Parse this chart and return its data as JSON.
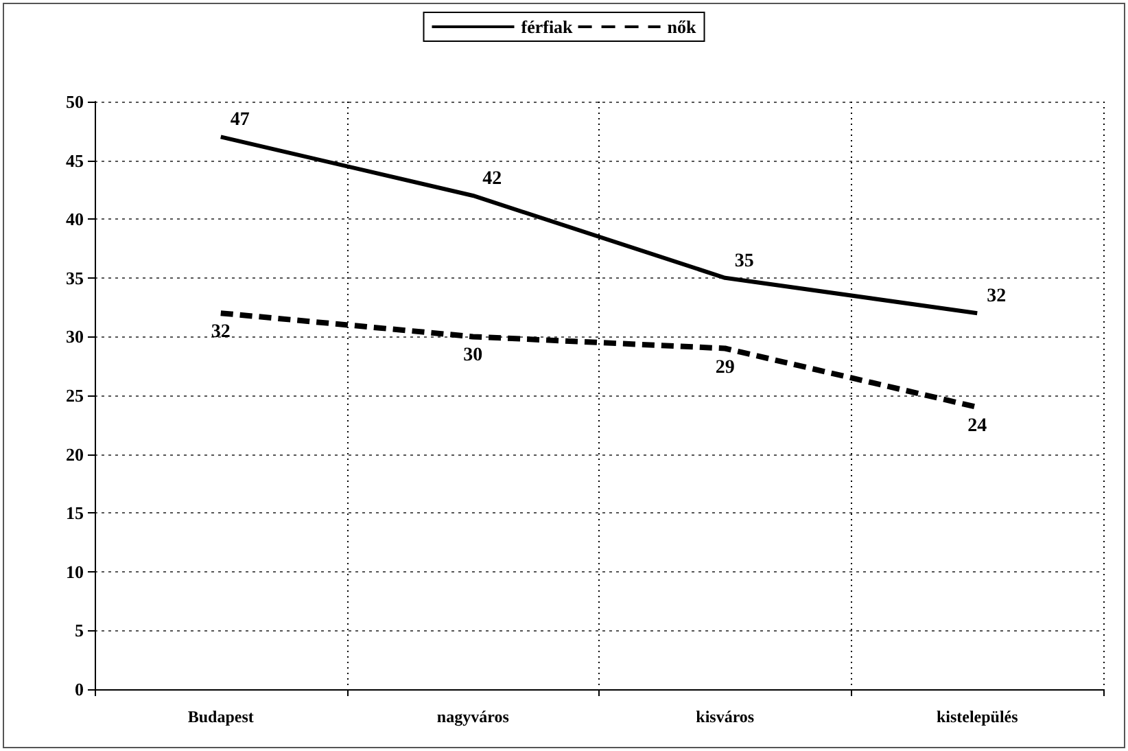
{
  "chart_data": {
    "type": "line",
    "categories": [
      "Budapest",
      "nagyváros",
      "kisváros",
      "kistelepülés"
    ],
    "series": [
      {
        "name": "férfiak",
        "color": "#000000",
        "values": [
          47,
          42,
          35,
          32
        ],
        "line_style": "solid"
      },
      {
        "name": "nők",
        "color": "#000000",
        "values": [
          32,
          30,
          29,
          24
        ],
        "line_style": "dashed"
      }
    ],
    "ylim": [
      0,
      50
    ],
    "yticks": [
      0,
      5,
      10,
      15,
      20,
      25,
      30,
      35,
      40,
      45,
      50
    ],
    "grid": true,
    "legend": "top",
    "marker": "none",
    "data_labels": true
  }
}
